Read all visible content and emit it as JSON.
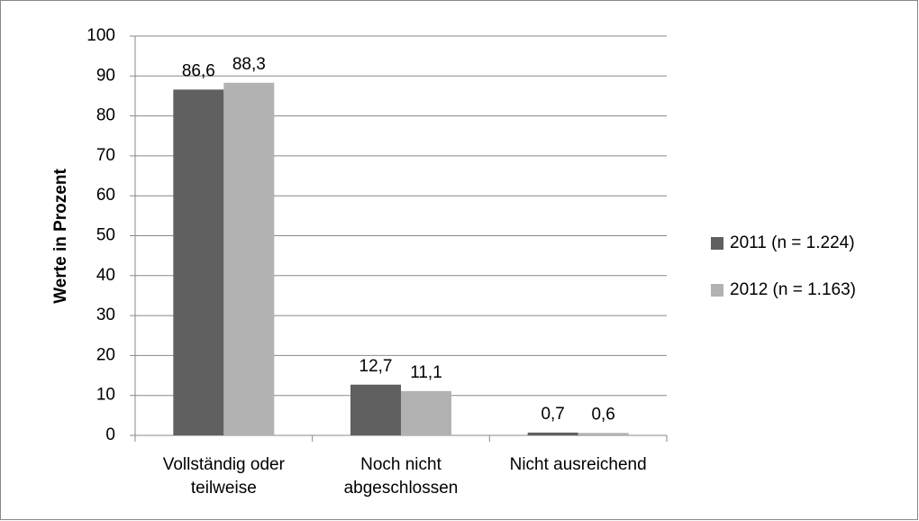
{
  "chart_data": {
    "type": "bar",
    "y_label": "Werte in Prozent",
    "categories": [
      "Vollständig oder teilweise",
      "Noch nicht abgeschlossen",
      "Nicht ausreichend"
    ],
    "series": [
      {
        "name": "2011 (n = 1.224)",
        "color": "#606060",
        "values": [
          86.6,
          12.7,
          0.7
        ],
        "value_labels": [
          "86,6",
          "12,7",
          "0,7"
        ]
      },
      {
        "name": "2012 (n = 1.163)",
        "color": "#b2b2b2",
        "values": [
          88.3,
          11.1,
          0.6
        ],
        "value_labels": [
          "88,3",
          "11,1",
          "0,6"
        ]
      }
    ],
    "ylim": [
      0,
      100
    ],
    "yticks": [
      0,
      10,
      20,
      30,
      40,
      50,
      60,
      70,
      80,
      90,
      100
    ],
    "grid": true,
    "legend": "right"
  }
}
